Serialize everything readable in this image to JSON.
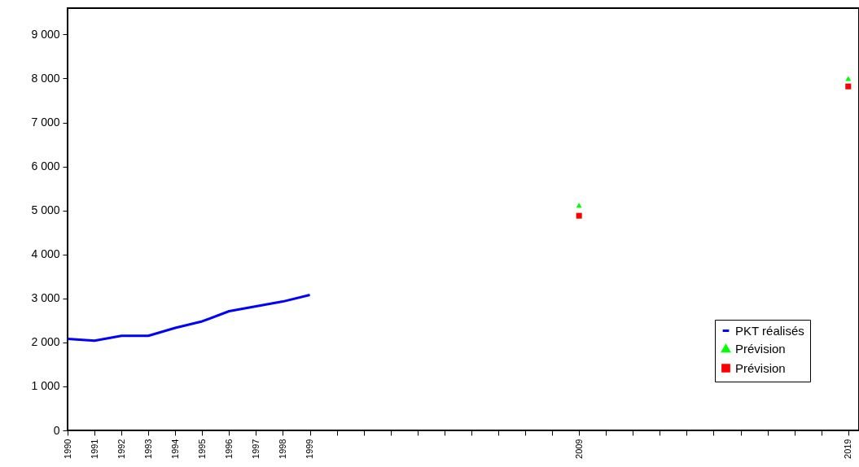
{
  "chart_data": {
    "type": "line",
    "xlim": [
      1990,
      2019.4
    ],
    "xticks": [
      1990,
      1991,
      1992,
      1993,
      1994,
      1995,
      1996,
      1997,
      1998,
      1999,
      {
        "value": 2000,
        "label": null
      },
      {
        "value": 2001,
        "label": null
      },
      {
        "value": 2002,
        "label": null
      },
      {
        "value": 2003,
        "label": null
      },
      {
        "value": 2004,
        "label": null
      },
      {
        "value": 2005,
        "label": null
      },
      {
        "value": 2006,
        "label": null
      },
      {
        "value": 2007,
        "label": null
      },
      {
        "value": 2008,
        "label": null
      },
      2009,
      {
        "value": 2010,
        "label": null
      },
      {
        "value": 2011,
        "label": null
      },
      {
        "value": 2012,
        "label": null
      },
      {
        "value": 2013,
        "label": null
      },
      {
        "value": 2014,
        "label": null
      },
      {
        "value": 2015,
        "label": null
      },
      {
        "value": 2016,
        "label": null
      },
      {
        "value": 2017,
        "label": null
      },
      {
        "value": 2018,
        "label": null
      },
      2019
    ],
    "ylim": [
      0,
      9600
    ],
    "yticks": [
      0,
      {
        "value": 1000,
        "label": "1 000"
      },
      {
        "value": 2000,
        "label": "2 000"
      },
      {
        "value": 3000,
        "label": "3 000"
      },
      {
        "value": 4000,
        "label": "4 000"
      },
      {
        "value": 5000,
        "label": "5 000"
      },
      {
        "value": 6000,
        "label": "6 000"
      },
      {
        "value": 7000,
        "label": "7 000"
      },
      {
        "value": 8000,
        "label": "8 000"
      },
      {
        "value": 9000,
        "label": "9 000"
      }
    ],
    "grid": false,
    "legend": "bottom right",
    "series": [
      {
        "name": "PKT réalisés",
        "color": "#0000ff",
        "x": [
          1990,
          1991,
          1992,
          1993,
          1994,
          1995,
          1996,
          1997,
          1998,
          1999
        ],
        "values": [
          2080,
          2040,
          2150,
          2150,
          2330,
          2480,
          2710,
          2820,
          2930,
          3080
        ]
      },
      {
        "name": "Prévision",
        "type": "scatter",
        "marker": "triangle",
        "color": "#00ff00",
        "x": [
          2009,
          2019
        ],
        "values": [
          5120,
          8000
        ]
      },
      {
        "name": "Prévision",
        "type": "scatter",
        "marker": "square",
        "color": "#ff0000",
        "x": [
          2009,
          2019
        ],
        "values": [
          4880,
          7820
        ]
      }
    ]
  }
}
